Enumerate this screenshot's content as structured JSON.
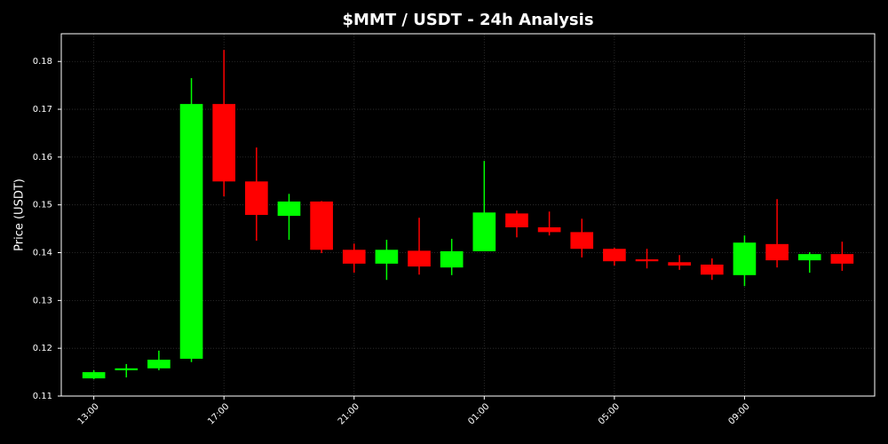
{
  "chart_data": {
    "type": "candlestick",
    "title": "$MMT / USDT - 24h Analysis",
    "y_label": "Price (USDT)",
    "categories": [
      "13:00",
      null,
      null,
      null,
      "17:00",
      null,
      null,
      null,
      "21:00",
      null,
      null,
      null,
      "01:00",
      null,
      null,
      null,
      "05:00",
      null,
      null,
      null,
      "09:00",
      null,
      null,
      null
    ],
    "open": [
      0.1137,
      0.1154,
      0.1158,
      0.1178,
      0.1711,
      0.1549,
      0.1477,
      0.1507,
      0.1406,
      0.1377,
      0.1404,
      0.1369,
      0.1403,
      0.1482,
      0.1453,
      0.1443,
      0.1408,
      0.1386,
      0.138,
      0.1375,
      0.1353,
      0.1418,
      0.1384,
      0.1397
    ],
    "high": [
      0.1154,
      0.1167,
      0.1195,
      0.1765,
      0.1824,
      0.162,
      0.1523,
      0.1508,
      0.1419,
      0.1427,
      0.1473,
      0.1429,
      0.1592,
      0.1488,
      0.1486,
      0.1471,
      0.141,
      0.1408,
      0.1395,
      0.1388,
      0.1436,
      0.1512,
      0.1401,
      0.1423
    ],
    "low": [
      0.1135,
      0.1139,
      0.1154,
      0.1171,
      0.1518,
      0.1425,
      0.1427,
      0.1399,
      0.1358,
      0.1343,
      0.1354,
      0.1353,
      0.1403,
      0.1432,
      0.1436,
      0.139,
      0.1373,
      0.1367,
      0.1364,
      0.1343,
      0.133,
      0.1369,
      0.1358,
      0.1362
    ],
    "close": [
      0.115,
      0.1158,
      0.1176,
      0.1711,
      0.1549,
      0.1479,
      0.1507,
      0.1406,
      0.1377,
      0.1406,
      0.1371,
      0.1403,
      0.1484,
      0.1453,
      0.1443,
      0.1408,
      0.1382,
      0.1382,
      0.1373,
      0.1354,
      0.1421,
      0.1384,
      0.1397,
      0.1377
    ],
    "up_color": "#00ff00",
    "down_color": "#ff0000",
    "ylim": [
      0.11,
      0.1858
    ],
    "yticks": [
      0.11,
      0.12,
      0.13,
      0.14,
      0.15,
      0.16,
      0.17,
      0.18
    ],
    "grid": true
  }
}
